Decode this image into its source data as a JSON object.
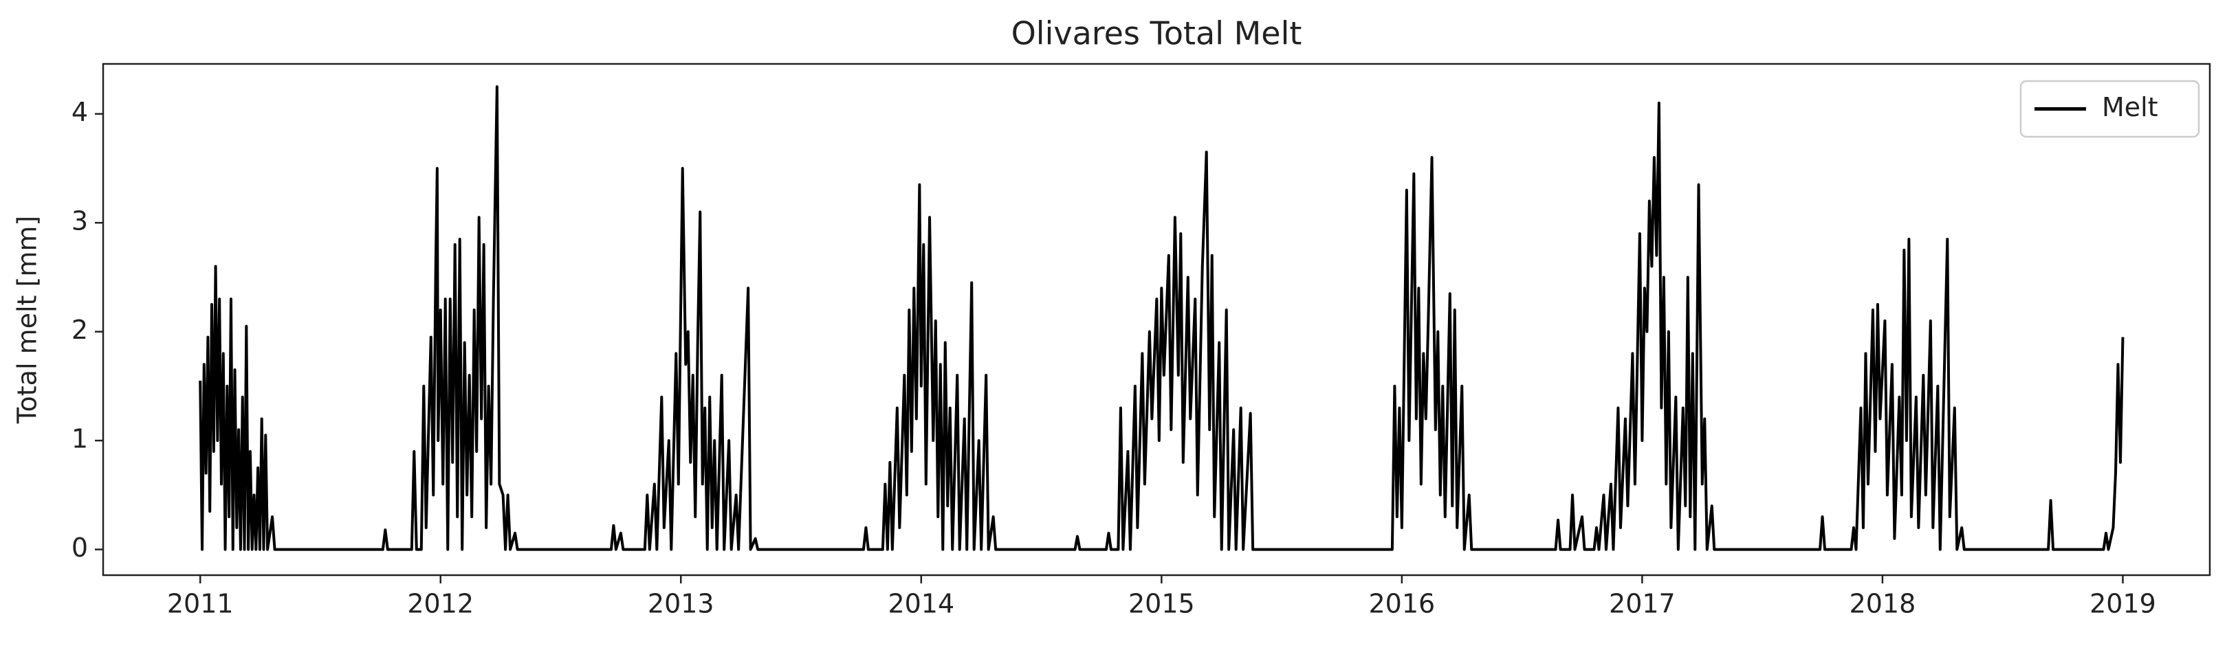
{
  "chart_data": {
    "type": "line",
    "title": "Olivares Total Melt",
    "ylabel": "Total melt [mm]",
    "xlim": [
      2010.596,
      2019.362
    ],
    "xticks": [
      2011,
      2012,
      2013,
      2014,
      2015,
      2016,
      2017,
      2018,
      2019
    ],
    "ylim": [
      -0.236,
      4.459
    ],
    "yticks": [
      0,
      1,
      2,
      3,
      4
    ],
    "grid": false,
    "legend": "upper right",
    "x": [
      2011,
      2011.008,
      2011.016,
      2011.024,
      2011.032,
      2011.04,
      2011.048,
      2011.056,
      2011.064,
      2011.072,
      2011.08,
      2011.088,
      2011.096,
      2011.104,
      2011.112,
      2011.12,
      2011.128,
      2011.136,
      2011.144,
      2011.152,
      2011.16,
      2011.168,
      2011.176,
      2011.184,
      2011.192,
      2011.2,
      2011.208,
      2011.216,
      2011.224,
      2011.232,
      2011.24,
      2011.248,
      2011.256,
      2011.264,
      2011.272,
      2011.28,
      2011.3,
      2011.31,
      2011.76,
      2011.77,
      2011.78,
      2011.88,
      2011.89,
      2011.9,
      2011.92,
      2011.93,
      2011.94,
      2011.95,
      2011.96,
      2011.97,
      2011.98,
      2011.986,
      2011.99,
      2012,
      2012.01,
      2012.02,
      2012.03,
      2012.04,
      2012.05,
      2012.06,
      2012.07,
      2012.08,
      2012.09,
      2012.1,
      2012.11,
      2012.12,
      2012.13,
      2012.14,
      2012.15,
      2012.16,
      2012.17,
      2012.18,
      2012.19,
      2012.2,
      2012.21,
      2012.22,
      2012.235,
      2012.245,
      2012.26,
      2012.27,
      2012.28,
      2012.29,
      2012.31,
      2012.32,
      2012.71,
      2012.72,
      2012.73,
      2012.75,
      2012.76,
      2012.85,
      2012.86,
      2012.87,
      2012.89,
      2012.9,
      2012.92,
      2012.93,
      2012.95,
      2012.96,
      2012.98,
      2012.99,
      2013.007,
      2013.02,
      2013.03,
      2013.04,
      2013.05,
      2013.06,
      2013.07,
      2013.08,
      2013.09,
      2013.1,
      2013.11,
      2013.12,
      2013.13,
      2013.14,
      2013.15,
      2013.17,
      2013.18,
      2013.2,
      2013.21,
      2013.23,
      2013.24,
      2013.28,
      2013.29,
      2013.31,
      2013.32,
      2013.76,
      2013.77,
      2013.78,
      2013.84,
      2013.85,
      2013.86,
      2013.87,
      2013.88,
      2013.9,
      2013.91,
      2013.93,
      2013.94,
      2013.95,
      2013.96,
      2013.97,
      2013.98,
      2013.993,
      2014,
      2014.01,
      2014.02,
      2014.035,
      2014.05,
      2014.06,
      2014.07,
      2014.08,
      2014.09,
      2014.1,
      2014.11,
      2014.12,
      2014.13,
      2014.15,
      2014.16,
      2014.18,
      2014.19,
      2014.21,
      2014.22,
      2014.24,
      2014.25,
      2014.27,
      2014.28,
      2014.3,
      2014.31,
      2014.64,
      2014.65,
      2014.66,
      2014.77,
      2014.78,
      2014.79,
      2014.82,
      2014.83,
      2014.84,
      2014.86,
      2014.87,
      2014.89,
      2014.9,
      2014.92,
      2014.93,
      2014.95,
      2014.96,
      2014.98,
      2014.99,
      2015,
      2015.01,
      2015.03,
      2015.04,
      2015.056,
      2015.07,
      2015.08,
      2015.09,
      2015.11,
      2015.12,
      2015.14,
      2015.15,
      2015.17,
      2015.187,
      2015.2,
      2015.21,
      2015.22,
      2015.24,
      2015.25,
      2015.27,
      2015.28,
      2015.3,
      2015.31,
      2015.33,
      2015.34,
      2015.37,
      2015.38,
      2015.96,
      2015.97,
      2015.98,
      2015.99,
      2016,
      2016.02,
      2016.03,
      2016.05,
      2016.06,
      2016.07,
      2016.08,
      2016.09,
      2016.1,
      2016.11,
      2016.125,
      2016.14,
      2016.15,
      2016.16,
      2016.17,
      2016.18,
      2016.2,
      2016.21,
      2016.22,
      2016.23,
      2016.25,
      2016.26,
      2016.28,
      2016.29,
      2016.64,
      2016.65,
      2016.66,
      2016.7,
      2016.71,
      2016.72,
      2016.75,
      2016.76,
      2016.8,
      2016.81,
      2016.82,
      2016.84,
      2016.85,
      2016.87,
      2016.88,
      2016.9,
      2016.91,
      2016.93,
      2016.94,
      2016.96,
      2016.97,
      2016.99,
      2017,
      2017.01,
      2017.02,
      2017.03,
      2017.04,
      2017.05,
      2017.06,
      2017.07,
      2017.08,
      2017.09,
      2017.1,
      2017.11,
      2017.12,
      2017.14,
      2017.15,
      2017.17,
      2017.18,
      2017.19,
      2017.2,
      2017.21,
      2017.22,
      2017.235,
      2017.25,
      2017.26,
      2017.27,
      2017.29,
      2017.3,
      2017.74,
      2017.75,
      2017.76,
      2017.87,
      2017.88,
      2017.89,
      2017.91,
      2017.92,
      2017.93,
      2017.94,
      2017.96,
      2017.97,
      2017.98,
      2017.99,
      2018.01,
      2018.02,
      2018.04,
      2018.05,
      2018.07,
      2018.08,
      2018.09,
      2018.1,
      2018.11,
      2018.12,
      2018.14,
      2018.15,
      2018.17,
      2018.18,
      2018.2,
      2018.21,
      2018.23,
      2018.24,
      2018.27,
      2018.28,
      2018.3,
      2018.31,
      2018.33,
      2018.34,
      2018.69,
      2018.7,
      2018.71,
      2018.92,
      2018.93,
      2018.94,
      2018.96,
      2018.97,
      2018.98,
      2018.99,
      2019
    ],
    "series": [
      {
        "name": "Melt",
        "color": "#000000",
        "values": [
          1.55,
          0,
          1.7,
          0.7,
          1.95,
          0.35,
          2.25,
          0.9,
          2.6,
          1.0,
          2.3,
          0.6,
          1.8,
          0,
          1.5,
          0.3,
          2.3,
          0,
          1.65,
          0.2,
          1.1,
          0,
          1.4,
          0,
          2.05,
          0,
          0.9,
          0,
          0.5,
          0,
          0.75,
          0,
          1.2,
          0,
          1.05,
          0,
          0.3,
          0,
          0,
          0.18,
          0,
          0,
          0.9,
          0,
          0,
          1.5,
          0.2,
          1.1,
          1.95,
          0.5,
          2.6,
          3.5,
          1.0,
          2.2,
          0.6,
          2.3,
          0,
          2.3,
          0.8,
          2.8,
          0.3,
          2.85,
          0,
          1.9,
          0.5,
          1.6,
          0.3,
          2.2,
          0.9,
          3.05,
          1.2,
          2.8,
          0.2,
          1.5,
          0.6,
          2.3,
          4.25,
          0.6,
          0.5,
          0,
          0.5,
          0,
          0.15,
          0,
          0,
          0.22,
          0,
          0.15,
          0,
          0,
          0.5,
          0,
          0.6,
          0,
          1.4,
          0.2,
          1.0,
          0,
          1.8,
          0.6,
          3.5,
          1.7,
          2.0,
          0.8,
          1.6,
          0.3,
          1.9,
          3.1,
          0.6,
          1.3,
          0,
          1.4,
          0.2,
          1.0,
          0,
          1.6,
          0,
          1.0,
          0,
          0.5,
          0,
          2.4,
          0,
          0.1,
          0,
          0,
          0.2,
          0,
          0,
          0.6,
          0,
          0.8,
          0,
          1.3,
          0.2,
          1.6,
          0.5,
          2.2,
          0.9,
          2.4,
          1.2,
          3.35,
          1.5,
          2.8,
          0.6,
          3.05,
          1.0,
          2.1,
          0.3,
          1.7,
          0,
          1.9,
          0.4,
          1.3,
          0,
          1.6,
          0,
          1.2,
          0,
          2.45,
          0,
          1.0,
          0,
          1.6,
          0,
          0.3,
          0,
          0,
          0.12,
          0,
          0,
          0.15,
          0,
          0,
          1.3,
          0,
          0.9,
          0,
          1.5,
          0.2,
          1.8,
          0.6,
          2.0,
          1.2,
          2.3,
          1.0,
          2.4,
          1.6,
          2.7,
          1.1,
          3.05,
          1.6,
          2.9,
          0.8,
          2.5,
          1.2,
          2.3,
          0.5,
          2.6,
          3.65,
          1.1,
          2.7,
          0.3,
          1.9,
          0,
          2.2,
          0,
          1.1,
          0,
          1.3,
          0,
          1.25,
          0,
          0,
          1.5,
          0.3,
          1.3,
          0.2,
          3.3,
          1.0,
          3.45,
          1.2,
          2.4,
          0.6,
          1.8,
          1.2,
          2.1,
          3.6,
          1.1,
          2.0,
          0.5,
          1.5,
          0.3,
          2.35,
          0.4,
          2.2,
          0.2,
          1.5,
          0,
          0.5,
          0,
          0,
          0.27,
          0,
          0,
          0.5,
          0,
          0.3,
          0,
          0,
          0.2,
          0,
          0.5,
          0,
          0.6,
          0,
          1.3,
          0.2,
          1.2,
          0.4,
          1.8,
          0.6,
          2.9,
          1.0,
          2.4,
          2.0,
          3.2,
          2.6,
          3.6,
          2.7,
          4.1,
          1.3,
          2.5,
          0.6,
          2.0,
          0.2,
          1.4,
          0,
          1.3,
          0.4,
          2.5,
          0.3,
          1.8,
          0,
          3.35,
          0.6,
          1.2,
          0,
          0.4,
          0,
          0,
          0.3,
          0,
          0,
          0.2,
          0,
          1.3,
          0.2,
          1.8,
          0.6,
          2.2,
          0.9,
          2.25,
          1.2,
          2.1,
          0.5,
          1.7,
          0.1,
          1.4,
          0.5,
          2.75,
          1.0,
          2.85,
          0.3,
          1.4,
          0.2,
          1.6,
          0.5,
          2.1,
          0.2,
          1.5,
          0,
          2.85,
          0.3,
          1.3,
          0,
          0.2,
          0,
          0,
          0.45,
          0,
          0,
          0.15,
          0,
          0.2,
          0.7,
          1.7,
          0.8,
          1.95
        ]
      }
    ]
  }
}
